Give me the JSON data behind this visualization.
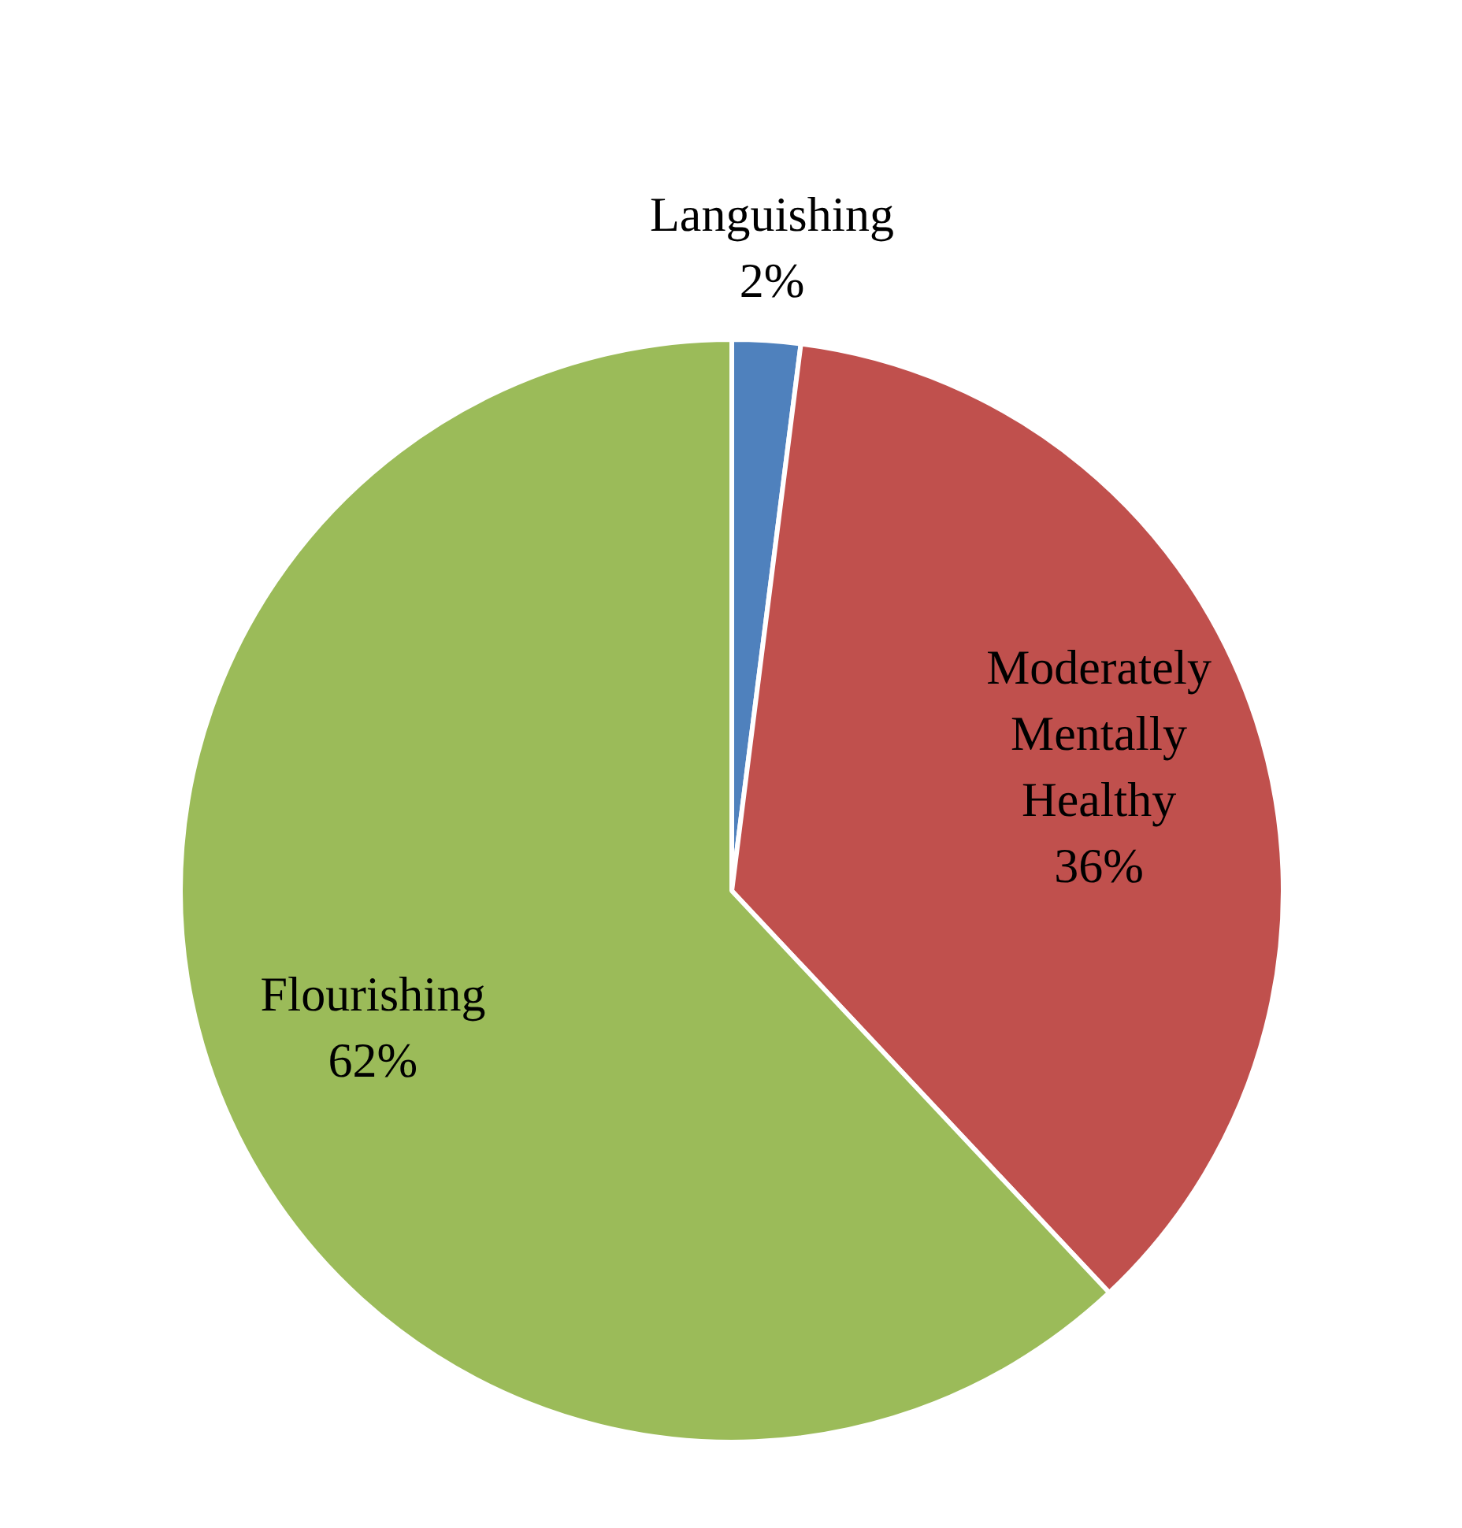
{
  "chart_data": {
    "type": "pie",
    "categories": [
      "Languishing",
      "Moderately Mentally Healthy",
      "Flourishing"
    ],
    "values": [
      2,
      36,
      62
    ],
    "colors": [
      "#4f81bd",
      "#c0504d",
      "#9bbb59"
    ],
    "value_labels": [
      "2%",
      "36%",
      "62%"
    ]
  }
}
